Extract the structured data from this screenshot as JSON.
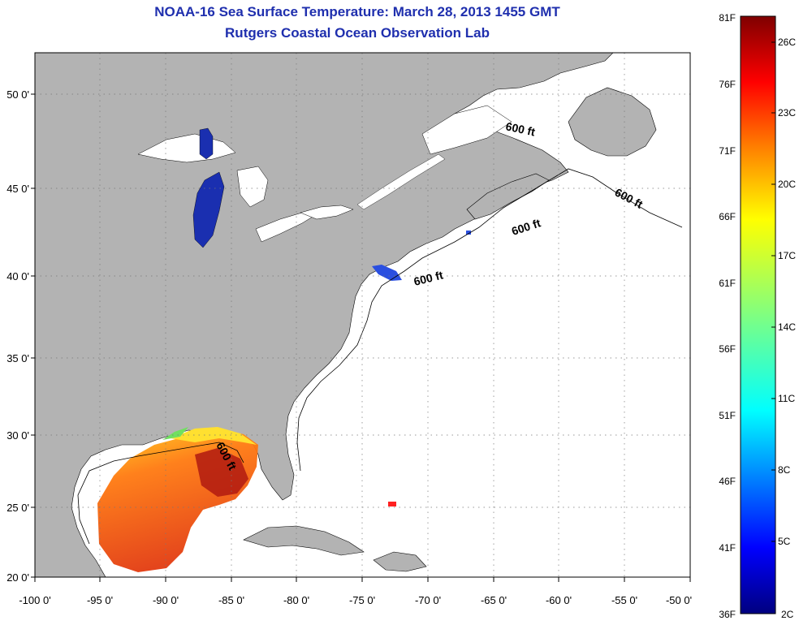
{
  "header": {
    "title": "NOAA-16 Sea Surface Temperature:  March 28, 2013 1455 GMT",
    "subtitle": "Rutgers Coastal Ocean Observation Lab"
  },
  "map": {
    "lat_ticks": [
      "50 0'",
      "45 0'",
      "40 0'",
      "35 0'",
      "30 0'",
      "25 0'",
      "20 0'"
    ],
    "lon_ticks": [
      "-100 0'",
      "-95 0'",
      "-90 0'",
      "-85 0'",
      "-80 0'",
      "-75 0'",
      "-70 0'",
      "-65 0'",
      "-60 0'",
      "-55 0'",
      "-50 0'"
    ],
    "contour_label": "600 ft",
    "colors": {
      "land": "#b3b3b3",
      "ocean": "#ffffff",
      "lake": "#1a2fb0",
      "grid": "#777777"
    }
  },
  "colorbar": {
    "fahrenheit_labels": [
      "81F",
      "76F",
      "71F",
      "66F",
      "61F",
      "56F",
      "51F",
      "46F",
      "41F",
      "36F"
    ],
    "celsius_labels": [
      "26C",
      "23C",
      "20C",
      "17C",
      "14C",
      "11C",
      "8C",
      "5C",
      "2C"
    ],
    "colors": [
      "#00007f",
      "#0000ff",
      "#0080ff",
      "#00ffff",
      "#80ff80",
      "#ffff00",
      "#ff8000",
      "#ff0000",
      "#7f0000"
    ]
  }
}
